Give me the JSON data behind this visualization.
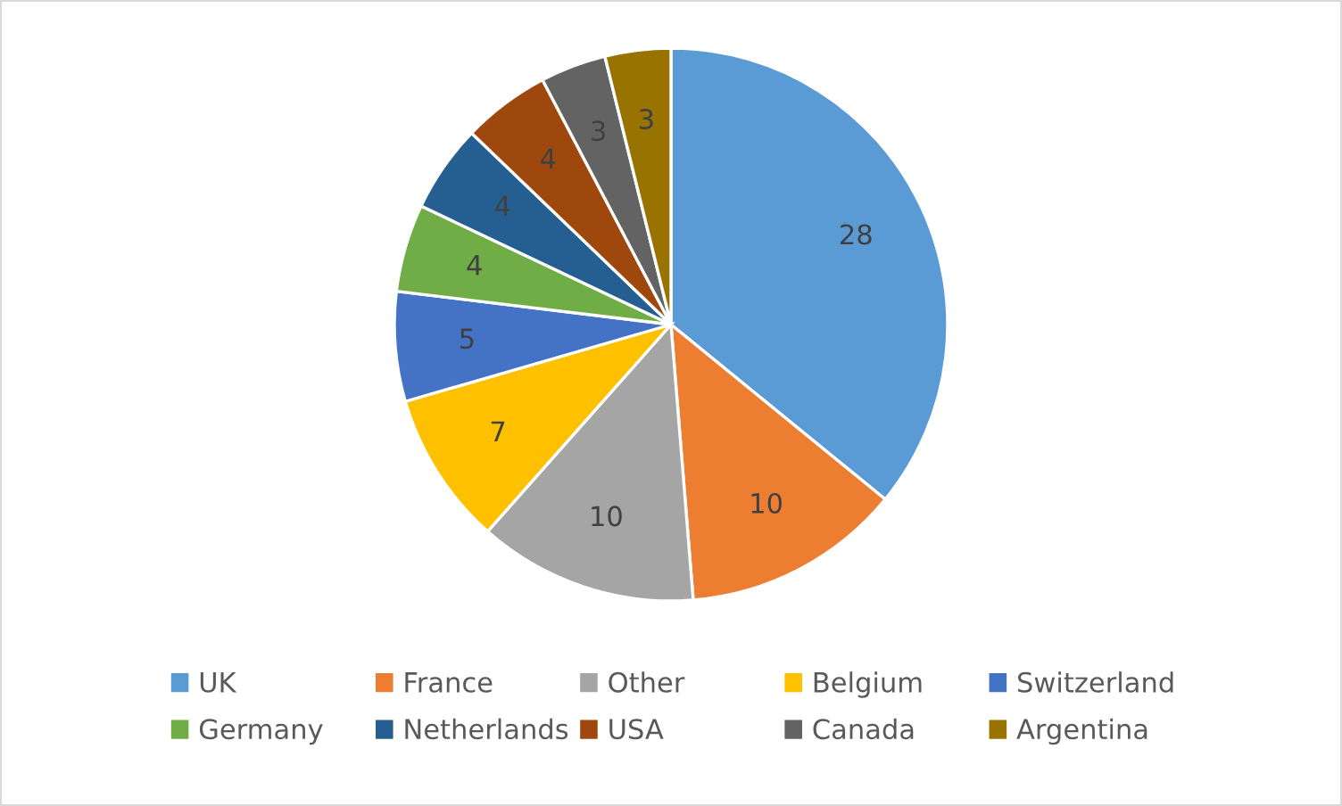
{
  "chart_data": {
    "type": "pie",
    "categories": [
      "UK",
      "France",
      "Other",
      "Belgium",
      "Switzerland",
      "Germany",
      "Netherlands",
      "USA",
      "Canada",
      "Argentina"
    ],
    "values": [
      28,
      10,
      10,
      7,
      5,
      4,
      4,
      4,
      3,
      3
    ],
    "colors": [
      "#5b9bd5",
      "#ed7d31",
      "#a5a5a5",
      "#ffc000",
      "#4472c4",
      "#70ad47",
      "#255e91",
      "#9e480e",
      "#636363",
      "#997300"
    ],
    "data_labels": true,
    "legend": "bottom"
  }
}
